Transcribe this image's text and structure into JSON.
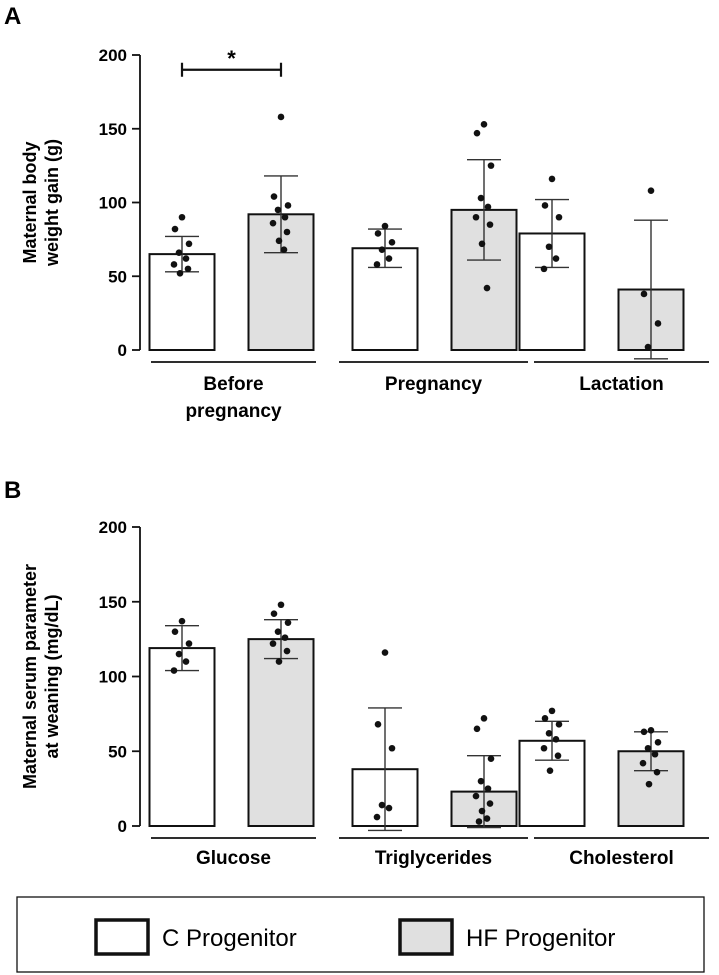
{
  "colors": {
    "c_fill": "#ffffff",
    "hf_fill": "#e0e0e0",
    "stroke": "#111111"
  },
  "legend": {
    "entries": [
      {
        "label": "C Progenitor",
        "color": "#ffffff"
      },
      {
        "label": "HF Progenitor",
        "color": "#e0e0e0"
      }
    ]
  },
  "chart_data": [
    {
      "type": "bar",
      "panel": "A",
      "ylabel": [
        "Maternal body",
        "weight gain (g)"
      ],
      "ylim": [
        0,
        200
      ],
      "yticks": [
        0,
        50,
        100,
        150,
        200
      ],
      "categories": [
        [
          "Before",
          "pregnancy"
        ],
        [
          "Pregnancy"
        ],
        [
          "Lactation"
        ]
      ],
      "series": [
        {
          "name": "C Progenitor",
          "values": [
            65,
            69,
            79
          ],
          "sd": [
            12,
            13,
            23
          ],
          "points": [
            [
              90,
              82,
              72,
              66,
              62,
              58,
              55,
              52
            ],
            [
              84,
              79,
              73,
              68,
              62,
              58
            ],
            [
              116,
              98,
              90,
              70,
              62,
              55
            ]
          ]
        },
        {
          "name": "HF Progenitor",
          "values": [
            92,
            95,
            41
          ],
          "sd": [
            26,
            34,
            47
          ],
          "points": [
            [
              158,
              104,
              98,
              95,
              90,
              86,
              80,
              74,
              68
            ],
            [
              153,
              147,
              125,
              103,
              97,
              90,
              85,
              72,
              42
            ],
            [
              108,
              38,
              18,
              2
            ]
          ]
        }
      ],
      "significance": [
        {
          "category": 0,
          "label": "*"
        }
      ]
    },
    {
      "type": "bar",
      "panel": "B",
      "ylabel": [
        "Maternal serum parameter",
        "at weaning (mg/dL)"
      ],
      "ylim": [
        0,
        200
      ],
      "yticks": [
        0,
        50,
        100,
        150,
        200
      ],
      "categories": [
        [
          "Glucose"
        ],
        [
          "Triglycerides"
        ],
        [
          "Cholesterol"
        ]
      ],
      "series": [
        {
          "name": "C Progenitor",
          "values": [
            119,
            38,
            57
          ],
          "sd": [
            15,
            41,
            13
          ],
          "points": [
            [
              137,
              130,
              122,
              115,
              110,
              104
            ],
            [
              116,
              68,
              52,
              14,
              12,
              6
            ],
            [
              77,
              72,
              68,
              62,
              58,
              52,
              47,
              37
            ]
          ]
        },
        {
          "name": "HF Progenitor",
          "values": [
            125,
            23,
            50
          ],
          "sd": [
            13,
            24,
            13
          ],
          "points": [
            [
              148,
              142,
              136,
              130,
              126,
              122,
              117,
              110
            ],
            [
              72,
              65,
              45,
              30,
              25,
              20,
              15,
              10,
              5,
              3
            ],
            [
              64,
              63,
              56,
              52,
              48,
              42,
              36,
              28
            ]
          ]
        }
      ]
    }
  ]
}
